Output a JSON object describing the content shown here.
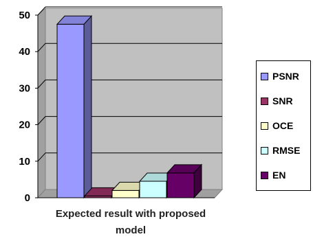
{
  "chart_data": {
    "type": "bar",
    "subtype": "3d-clustered-column",
    "categories": [
      "Expected result with proposed model"
    ],
    "series": [
      {
        "name": "PSNR",
        "values": [
          47.5
        ],
        "color": "#9999ff"
      },
      {
        "name": "SNR",
        "values": [
          0.5
        ],
        "color": "#993366"
      },
      {
        "name": "OCE",
        "values": [
          2.0
        ],
        "color": "#ffffcc"
      },
      {
        "name": "RMSE",
        "values": [
          4.5
        ],
        "color": "#ccffff"
      },
      {
        "name": "EN",
        "values": [
          6.8
        ],
        "color": "#660066"
      }
    ],
    "ylim": [
      0,
      50
    ],
    "yticks": [
      "0",
      "10",
      "20",
      "30",
      "40",
      "50"
    ],
    "grid": true,
    "plot_background": "#c0c0c0",
    "legend_position": "right"
  }
}
